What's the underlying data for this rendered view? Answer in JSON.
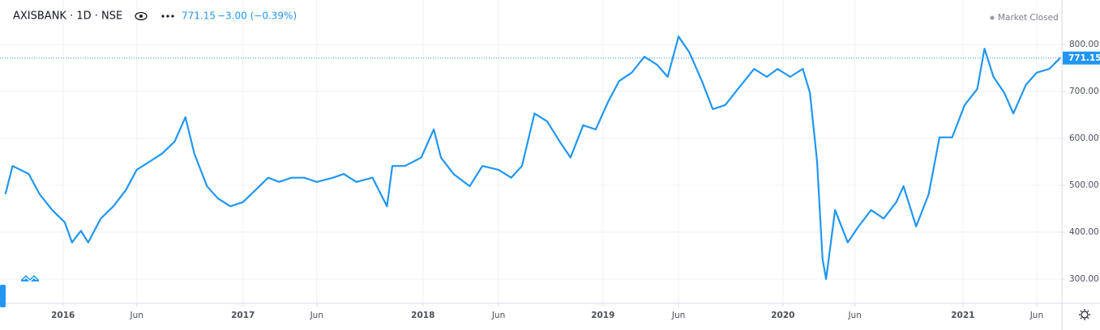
{
  "chart_data": {
    "type": "line",
    "title": "AXISBANK · 1D · NSE",
    "last_price": 771.15,
    "change_label": "−3.00 (−0.39%)",
    "status": "Market Closed",
    "color": "#2196f3",
    "grid": true,
    "x": [
      2015.68,
      2015.72,
      2015.81,
      2015.87,
      2015.94,
      2016.01,
      2016.05,
      2016.1,
      2016.14,
      2016.21,
      2016.28,
      2016.35,
      2016.41,
      2016.48,
      2016.55,
      2016.62,
      2016.68,
      2016.73,
      2016.8,
      2016.86,
      2016.93,
      2017.0,
      2017.07,
      2017.14,
      2017.2,
      2017.27,
      2017.34,
      2017.41,
      2017.5,
      2017.56,
      2017.63,
      2017.72,
      2017.8,
      2017.83,
      2017.9,
      2017.99,
      2018.06,
      2018.1,
      2018.17,
      2018.26,
      2018.33,
      2018.42,
      2018.49,
      2018.55,
      2018.62,
      2018.69,
      2018.76,
      2018.82,
      2018.89,
      2018.96,
      2019.03,
      2019.09,
      2019.16,
      2019.23,
      2019.3,
      2019.36,
      2019.42,
      2019.48,
      2019.55,
      2019.61,
      2019.68,
      2019.75,
      2019.84,
      2019.91,
      2019.97,
      2020.04,
      2020.11,
      2020.15,
      2020.19,
      2020.22,
      2020.24,
      2020.29,
      2020.36,
      2020.42,
      2020.49,
      2020.56,
      2020.63,
      2020.67,
      2020.74,
      2020.81,
      2020.87,
      2020.94,
      2021.01,
      2021.08,
      2021.12,
      2021.17,
      2021.23,
      2021.28,
      2021.35,
      2021.41,
      2021.48,
      2021.54
    ],
    "values": [
      481,
      541,
      524,
      481,
      447,
      421,
      378,
      403,
      378,
      429,
      455,
      490,
      533,
      550,
      567,
      593,
      645,
      567,
      498,
      472,
      455,
      464,
      490,
      516,
      507,
      516,
      516,
      507,
      516,
      524,
      507,
      516,
      455,
      541,
      541,
      559,
      619,
      559,
      524,
      498,
      541,
      533,
      516,
      541,
      653,
      636,
      593,
      559,
      628,
      619,
      679,
      722,
      740,
      774,
      757,
      731,
      817,
      783,
      722,
      662,
      671,
      705,
      748,
      731,
      748,
      731,
      748,
      697,
      550,
      343,
      300,
      447,
      378,
      412,
      447,
      429,
      464,
      498,
      412,
      481,
      602,
      602,
      671,
      705,
      791,
      731,
      697,
      653,
      714,
      740,
      748,
      771.15
    ],
    "xlim": [
      2015.65,
      2021.55
    ],
    "xticks": [
      {
        "value": 2016,
        "label": "2016"
      },
      {
        "value": 2016.41,
        "label": "Jun"
      },
      {
        "value": 2017,
        "label": "2017"
      },
      {
        "value": 2017.41,
        "label": "Jun"
      },
      {
        "value": 2018,
        "label": "2018"
      },
      {
        "value": 2018.42,
        "label": "Jun"
      },
      {
        "value": 2019,
        "label": "2019"
      },
      {
        "value": 2019.42,
        "label": "Jun"
      },
      {
        "value": 2020,
        "label": "2020"
      },
      {
        "value": 2020.4,
        "label": "Jun"
      },
      {
        "value": 2021,
        "label": "2021"
      },
      {
        "value": 2021.41,
        "label": "Jun"
      }
    ],
    "ylim": [
      248.3,
      894.8
    ],
    "yticks": [
      {
        "value": 300,
        "label": "300.00"
      },
      {
        "value": 400,
        "label": "400.00"
      },
      {
        "value": 500,
        "label": "500.00"
      },
      {
        "value": 600,
        "label": "600.00"
      },
      {
        "value": 700,
        "label": "700.00"
      },
      {
        "value": 800,
        "label": "800.00"
      }
    ]
  }
}
